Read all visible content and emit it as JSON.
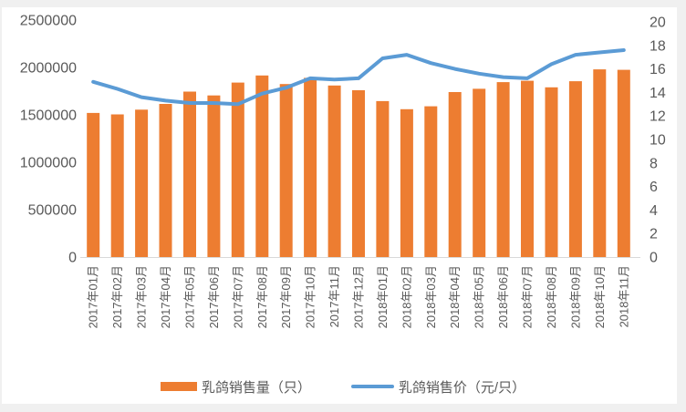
{
  "chart_data": {
    "type": "combo-bar-line",
    "title": "",
    "categories": [
      "2017年01月",
      "2017年02月",
      "2017年03月",
      "2017年04月",
      "2017年05月",
      "2017年06月",
      "2017年07月",
      "2017年08月",
      "2017年09月",
      "2017年10月",
      "2017年11月",
      "2017年12月",
      "2018年01月",
      "2018年02月",
      "2018年03月",
      "2018年04月",
      "2018年05月",
      "2018年06月",
      "2018年07月",
      "2018年08月",
      "2018年09月",
      "2018年10月",
      "2018年11月"
    ],
    "series": [
      {
        "name": "乳鸽销售量（只）",
        "type": "bar",
        "axis": "left",
        "color": "#ED7D31",
        "values": [
          1520000,
          1505000,
          1555000,
          1615000,
          1745000,
          1705000,
          1840000,
          1915000,
          1825000,
          1890000,
          1810000,
          1760000,
          1645000,
          1560000,
          1590000,
          1740000,
          1775000,
          1845000,
          1860000,
          1790000,
          1855000,
          1980000,
          1975000
        ]
      },
      {
        "name": "乳鸽销售价（元/只）",
        "type": "line",
        "axis": "right",
        "color": "#5B9BD5",
        "values": [
          14.9,
          14.3,
          13.6,
          13.3,
          13.1,
          13.1,
          13.0,
          13.9,
          14.4,
          15.2,
          15.1,
          15.2,
          16.9,
          17.2,
          16.5,
          16.0,
          15.6,
          15.3,
          15.2,
          16.4,
          17.2,
          17.4,
          17.6
        ]
      }
    ],
    "left_axis": {
      "min": 0,
      "max": 2500000,
      "step": 500000,
      "tick_labels": [
        "2500000",
        "2000000",
        "1500000",
        "1000000",
        "500000",
        "0"
      ]
    },
    "right_axis": {
      "min": 0,
      "max": 20,
      "step": 2,
      "tick_labels": [
        "20",
        "18",
        "16",
        "14",
        "12",
        "10",
        "8",
        "6",
        "4",
        "2",
        "0"
      ]
    },
    "grid": false,
    "legend_position": "bottom",
    "colors": {
      "text": "#595959",
      "axis_line": "#D9D9D9",
      "background": "#FFFFFF",
      "frame": "#F0F0F0"
    }
  }
}
